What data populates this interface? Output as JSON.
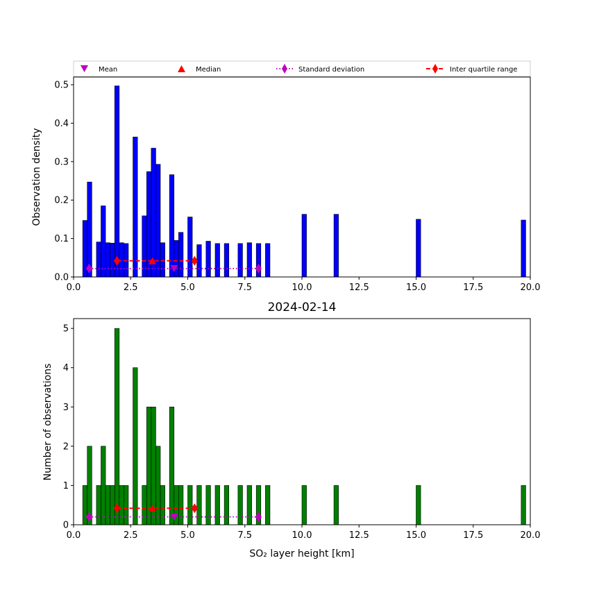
{
  "chart_data": [
    {
      "type": "bar",
      "panel": "top",
      "title": "",
      "xlabel": "",
      "ylabel": "Observation density",
      "xlim": [
        0.0,
        20.0
      ],
      "ylim": [
        0.0,
        0.52
      ],
      "xticks": [
        "0.0",
        "2.5",
        "5.0",
        "7.5",
        "10.0",
        "12.5",
        "15.0",
        "17.5",
        "20.0"
      ],
      "yticks": [
        "0.0",
        "0.1",
        "0.2",
        "0.3",
        "0.4",
        "0.5"
      ],
      "bar_color": "#0000ff",
      "bar_width": 0.2,
      "bars": [
        {
          "x": 0.5,
          "value": 0.147
        },
        {
          "x": 0.7,
          "value": 0.247
        },
        {
          "x": 1.1,
          "value": 0.091
        },
        {
          "x": 1.3,
          "value": 0.185
        },
        {
          "x": 1.5,
          "value": 0.089
        },
        {
          "x": 1.7,
          "value": 0.088
        },
        {
          "x": 1.9,
          "value": 0.497
        },
        {
          "x": 2.1,
          "value": 0.089
        },
        {
          "x": 2.3,
          "value": 0.087
        },
        {
          "x": 2.7,
          "value": 0.364
        },
        {
          "x": 3.1,
          "value": 0.159
        },
        {
          "x": 3.3,
          "value": 0.274
        },
        {
          "x": 3.5,
          "value": 0.335
        },
        {
          "x": 3.7,
          "value": 0.293
        },
        {
          "x": 3.9,
          "value": 0.089
        },
        {
          "x": 4.3,
          "value": 0.266
        },
        {
          "x": 4.5,
          "value": 0.095
        },
        {
          "x": 4.7,
          "value": 0.116
        },
        {
          "x": 5.1,
          "value": 0.156
        },
        {
          "x": 5.5,
          "value": 0.084
        },
        {
          "x": 5.9,
          "value": 0.093
        },
        {
          "x": 6.3,
          "value": 0.087
        },
        {
          "x": 6.7,
          "value": 0.087
        },
        {
          "x": 7.3,
          "value": 0.087
        },
        {
          "x": 7.7,
          "value": 0.089
        },
        {
          "x": 8.1,
          "value": 0.087
        },
        {
          "x": 8.5,
          "value": 0.087
        },
        {
          "x": 10.1,
          "value": 0.163
        },
        {
          "x": 11.5,
          "value": 0.163
        },
        {
          "x": 15.1,
          "value": 0.15
        },
        {
          "x": 19.7,
          "value": 0.148
        }
      ],
      "stats": {
        "marker_y": 0.022,
        "iqr_y": 0.042,
        "mean": 4.4,
        "median": 3.45,
        "std": [
          0.68,
          8.1
        ],
        "iqr": [
          1.9,
          5.3
        ]
      }
    },
    {
      "type": "bar",
      "panel": "bottom",
      "title": "2024-02-14",
      "xlabel": "SO₂ layer height [km]",
      "ylabel": "Number of observations",
      "xlim": [
        0.0,
        20.0
      ],
      "ylim": [
        0,
        5.25
      ],
      "xticks": [
        "0.0",
        "2.5",
        "5.0",
        "7.5",
        "10.0",
        "12.5",
        "15.0",
        "17.5",
        "20.0"
      ],
      "yticks": [
        "0",
        "1",
        "2",
        "3",
        "4",
        "5"
      ],
      "bar_color": "#008000",
      "bar_width": 0.2,
      "bars": [
        {
          "x": 0.5,
          "value": 1
        },
        {
          "x": 0.7,
          "value": 2
        },
        {
          "x": 1.1,
          "value": 1
        },
        {
          "x": 1.3,
          "value": 2
        },
        {
          "x": 1.5,
          "value": 1
        },
        {
          "x": 1.7,
          "value": 1
        },
        {
          "x": 1.9,
          "value": 5
        },
        {
          "x": 2.1,
          "value": 1
        },
        {
          "x": 2.3,
          "value": 1
        },
        {
          "x": 2.7,
          "value": 4
        },
        {
          "x": 3.1,
          "value": 1
        },
        {
          "x": 3.3,
          "value": 3
        },
        {
          "x": 3.5,
          "value": 3
        },
        {
          "x": 3.7,
          "value": 2
        },
        {
          "x": 3.9,
          "value": 1
        },
        {
          "x": 4.3,
          "value": 3
        },
        {
          "x": 4.5,
          "value": 1
        },
        {
          "x": 4.7,
          "value": 1
        },
        {
          "x": 5.1,
          "value": 1
        },
        {
          "x": 5.5,
          "value": 1
        },
        {
          "x": 5.9,
          "value": 1
        },
        {
          "x": 6.3,
          "value": 1
        },
        {
          "x": 6.7,
          "value": 1
        },
        {
          "x": 7.3,
          "value": 1
        },
        {
          "x": 7.7,
          "value": 1
        },
        {
          "x": 8.1,
          "value": 1
        },
        {
          "x": 8.5,
          "value": 1
        },
        {
          "x": 10.1,
          "value": 1
        },
        {
          "x": 11.5,
          "value": 1
        },
        {
          "x": 15.1,
          "value": 1
        },
        {
          "x": 19.7,
          "value": 1
        }
      ],
      "stats": {
        "marker_y": 0.2,
        "iqr_y": 0.42,
        "mean": 4.4,
        "median": 3.45,
        "std": [
          0.68,
          8.1
        ],
        "iqr": [
          1.9,
          5.3
        ]
      }
    }
  ],
  "legend": {
    "placement": "top, above upper panel",
    "items": [
      {
        "label": "Mean",
        "marker": "triangle-down",
        "color": "#bf00bf"
      },
      {
        "label": "Median",
        "marker": "triangle-up",
        "color": "#ff0000"
      },
      {
        "label": "Standard deviation",
        "marker": "diamond",
        "line": "dotted",
        "color": "#bf00bf"
      },
      {
        "label": "Inter quartile range",
        "marker": "diamond",
        "line": "dashed",
        "color": "#ff0000"
      }
    ]
  },
  "colors": {
    "mean": "#bf00bf",
    "median": "#ff0000",
    "std": "#bf00bf",
    "iqr": "#ff0000"
  }
}
